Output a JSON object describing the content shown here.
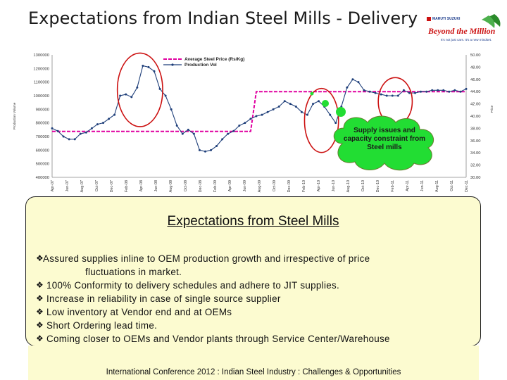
{
  "slide": {
    "title": "Expectations from Indian Steel Mills - Delivery",
    "logo": {
      "brand": "MARUTI SUZUKI",
      "tagline_main": "Beyond the Million",
      "tagline_sub": "It's not just cars. It's a new mindset."
    },
    "callout": "Supply issues and capacity constraint from Steel mills",
    "expectations": {
      "heading": "Expectations from Steel Mills",
      "items": [
        {
          "main": "Assured supplies inline to OEM production growth and irrespective of price",
          "cont": "fluctuations in market."
        },
        {
          "main": "100% Conformity to delivery schedules and adhere to JIT supplies."
        },
        {
          "main": "Increase in reliability in case of single source supplier"
        },
        {
          "main": "Low inventory at Vendor end and at OEMs"
        },
        {
          "main": "Short Ordering lead time."
        },
        {
          "main": "Coming closer to OEMs and Vendor plants through Service Center/Warehouse"
        }
      ]
    },
    "footer": "International Conference 2012 : Indian Steel Industry : Challenges & Opportunities",
    "colors": {
      "production": "#1f3f7a",
      "price": "#e000a0",
      "highlight": "#cc1111",
      "cloud": "#22dd33",
      "box": "#fcfbd0"
    }
  },
  "chart_data": {
    "type": "line",
    "legend": [
      "Average Steel Price (Rs/Kg)",
      "Production Vol"
    ],
    "legend_position": "top-left",
    "ylabel_left": "Production Volume",
    "ylabel_right": "Price",
    "y_left": {
      "min": 400000,
      "max": 1300000,
      "ticks": [
        "400000",
        "500000",
        "600000",
        "700000",
        "800000",
        "900000",
        "1000000",
        "1100000",
        "1200000",
        "1300000"
      ]
    },
    "y_right": {
      "min": 30,
      "max": 50,
      "ticks": [
        "30.00",
        "32.00",
        "34.00",
        "36.00",
        "38.00",
        "40.00",
        "42.00",
        "44.00",
        "46.00",
        "48.00",
        "50.00"
      ]
    },
    "x_tick_labels": [
      "Apr-07",
      "Jun-07",
      "Aug-07",
      "Oct-07",
      "Dec-07",
      "Feb-08",
      "Apr-08",
      "Jun-08",
      "Aug-08",
      "Oct-08",
      "Dec-08",
      "Feb-09",
      "Apr-09",
      "Jun-09",
      "Aug-09",
      "Oct-09",
      "Dec-09",
      "Feb-10",
      "Apr-10",
      "Jun-10",
      "Aug-10",
      "Oct-10",
      "Dec-10",
      "Feb-11",
      "Apr-11",
      "Jun-11",
      "Aug-11",
      "Oct-11",
      "Dec-11"
    ],
    "series": [
      {
        "name": "Production Vol",
        "axis": "left",
        "values": [
          760000,
          740000,
          700000,
          680000,
          680000,
          720000,
          730000,
          760000,
          790000,
          800000,
          830000,
          860000,
          1000000,
          1010000,
          990000,
          1060000,
          1220000,
          1210000,
          1180000,
          1050000,
          1000000,
          900000,
          780000,
          720000,
          750000,
          720000,
          600000,
          590000,
          600000,
          630000,
          680000,
          720000,
          740000,
          780000,
          800000,
          830000,
          850000,
          860000,
          880000,
          900000,
          920000,
          960000,
          940000,
          920000,
          880000,
          860000,
          940000,
          960000,
          920000,
          860000,
          800000,
          920000,
          1060000,
          1120000,
          1100000,
          1040000,
          1030000,
          1020000,
          1010000,
          1000000,
          1000000,
          1000000,
          1040000,
          1020000,
          1020000,
          1030000,
          1030000,
          1040000,
          1040000,
          1040000,
          1030000,
          1040000,
          1030000,
          1050000
        ]
      },
      {
        "name": "Average Steel Price (Rs/Kg)",
        "axis": "right",
        "values": [
          37.5,
          37.5,
          37.5,
          37.5,
          37.5,
          37.5,
          37.5,
          37.5,
          37.5,
          37.5,
          37.5,
          37.5,
          37.5,
          37.5,
          37.5,
          37.5,
          37.5,
          37.5,
          37.5,
          37.5,
          37.5,
          37.5,
          37.5,
          37.5,
          37.5,
          37.5,
          37.5,
          37.5,
          37.5,
          37.5,
          37.5,
          37.5,
          37.5,
          37.5,
          37.5,
          37.5,
          44,
          44,
          44,
          44,
          44,
          44,
          44,
          44,
          44,
          44,
          44,
          44,
          44,
          44,
          44,
          44,
          44,
          44,
          44,
          44,
          44,
          44,
          44,
          44,
          44,
          44,
          44,
          44,
          44,
          44,
          44,
          44,
          44,
          44,
          44,
          44,
          44,
          44
        ]
      }
    ],
    "highlight_ellipses": 3,
    "grid": false
  }
}
